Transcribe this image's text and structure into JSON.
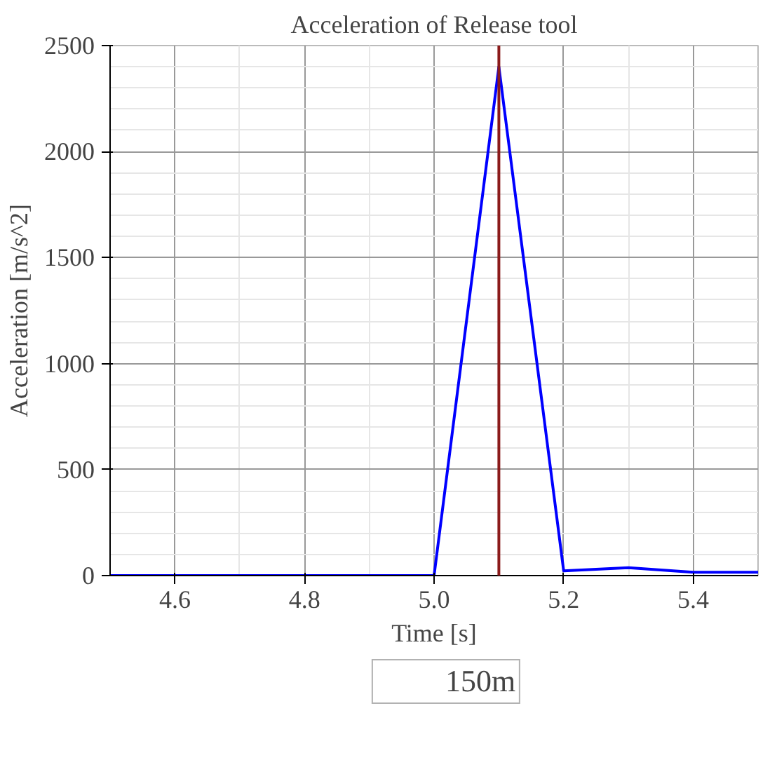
{
  "chart_data": {
    "type": "line",
    "title": "Acceleration of Release tool",
    "xlabel": "Time [s]",
    "ylabel": "Acceleration [m/s^2]",
    "x": [
      4.5,
      4.6,
      4.7,
      4.8,
      4.9,
      5.0,
      5.1,
      5.2,
      5.3,
      5.4,
      5.5
    ],
    "series": [
      {
        "name": "150m",
        "color": "#0000ff",
        "values": [
          0,
          0,
          0,
          0,
          0,
          0,
          2400,
          22,
          37,
          16,
          16
        ]
      }
    ],
    "xlim": [
      4.5,
      5.5
    ],
    "ylim": [
      0,
      2500
    ],
    "xticks": [
      4.6,
      4.8,
      {
        "value": 5.0,
        "label": "5.0"
      },
      5.2,
      5.4
    ],
    "yticks": [
      0,
      500,
      1000,
      1500,
      2000,
      2500
    ],
    "ref_lines": [
      {
        "axis": "x",
        "value": 5.1,
        "color": "#8b1a1a"
      }
    ],
    "grid": true,
    "legend": "bottom",
    "marker": "none",
    "line_style": "solid"
  }
}
